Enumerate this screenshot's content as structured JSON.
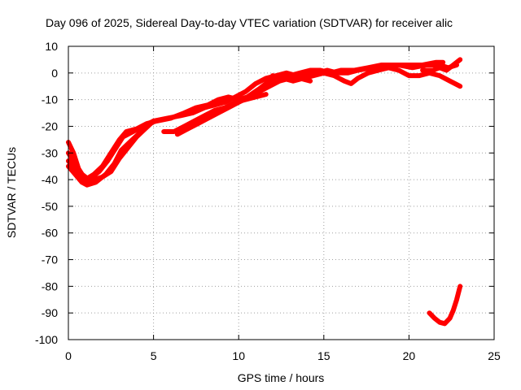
{
  "chart_data": {
    "type": "scatter",
    "title": "Day 096 of 2025, Sidereal Day-to-day VTEC variation (SDTVAR) for receiver alic",
    "xlabel": "GPS time / hours",
    "ylabel": "SDTVAR / TECUs",
    "xlim": [
      0,
      25
    ],
    "ylim": [
      -100,
      10
    ],
    "xticks": [
      0,
      5,
      10,
      15,
      20,
      25
    ],
    "yticks": [
      -100,
      -90,
      -80,
      -70,
      -60,
      -50,
      -40,
      -30,
      -20,
      -10,
      0,
      10
    ],
    "grid": true,
    "legend": "none",
    "series_color": "#ff0000",
    "series": [
      {
        "values": [
          [
            0.0,
            -26
          ],
          [
            0.3,
            -30
          ],
          [
            0.6,
            -36
          ],
          [
            1.0,
            -40
          ],
          [
            1.5,
            -38
          ],
          [
            2.0,
            -35
          ],
          [
            2.5,
            -30
          ],
          [
            3.0,
            -25
          ],
          [
            3.4,
            -22
          ],
          [
            4.0,
            -21
          ],
          [
            4.6,
            -19
          ],
          [
            5.2,
            -18
          ],
          [
            6.0,
            -17
          ],
          [
            6.8,
            -15
          ],
          [
            7.5,
            -13
          ],
          [
            8.2,
            -12
          ],
          [
            8.8,
            -10
          ],
          [
            9.4,
            -9
          ],
          [
            10.0,
            -10
          ],
          [
            10.5,
            -9
          ],
          [
            11.2,
            -6
          ],
          [
            11.8,
            -3
          ],
          [
            12.4,
            -1
          ],
          [
            13.0,
            -1
          ],
          [
            13.6,
            0
          ],
          [
            14.2,
            1
          ],
          [
            14.8,
            1
          ],
          [
            15.4,
            0
          ],
          [
            16.0,
            1
          ],
          [
            16.8,
            1
          ],
          [
            17.6,
            2
          ],
          [
            18.4,
            3
          ],
          [
            19.2,
            3
          ],
          [
            20.0,
            3
          ],
          [
            20.8,
            3
          ],
          [
            21.6,
            4
          ],
          [
            22.0,
            4
          ]
        ]
      },
      {
        "values": [
          [
            0.0,
            -30
          ],
          [
            0.4,
            -34
          ],
          [
            0.8,
            -38
          ],
          [
            1.2,
            -40
          ],
          [
            1.8,
            -37
          ],
          [
            2.3,
            -33
          ],
          [
            2.8,
            -28
          ],
          [
            3.2,
            -24
          ],
          [
            3.8,
            -22
          ],
          [
            4.4,
            -20
          ],
          [
            5.0,
            -18
          ],
          [
            5.8,
            -17
          ],
          [
            6.6,
            -16
          ],
          [
            7.3,
            -15
          ],
          [
            8.0,
            -13
          ],
          [
            8.6,
            -12
          ],
          [
            9.2,
            -11
          ],
          [
            9.8,
            -9
          ],
          [
            10.4,
            -7
          ],
          [
            11.0,
            -4
          ],
          [
            11.6,
            -2
          ],
          [
            12.2,
            -1
          ],
          [
            12.8,
            0
          ],
          [
            13.4,
            -1
          ],
          [
            14.0,
            0
          ],
          [
            14.6,
            0
          ],
          [
            15.2,
            1
          ],
          [
            15.8,
            0
          ],
          [
            16.4,
            0
          ],
          [
            17.0,
            1
          ],
          [
            17.8,
            2
          ],
          [
            18.6,
            2
          ],
          [
            19.4,
            3
          ],
          [
            20.2,
            2
          ],
          [
            21.0,
            3
          ],
          [
            21.8,
            3
          ],
          [
            22.3,
            2
          ],
          [
            22.8,
            3
          ]
        ]
      },
      {
        "values": [
          [
            0.0,
            -33
          ],
          [
            0.5,
            -37
          ],
          [
            1.0,
            -41
          ],
          [
            1.5,
            -40
          ],
          [
            2.0,
            -39
          ],
          [
            2.5,
            -37
          ],
          [
            3.0,
            -32
          ],
          [
            3.5,
            -28
          ],
          [
            4.0,
            -24
          ],
          [
            4.5,
            -21
          ],
          [
            5.0,
            -18
          ]
        ]
      },
      {
        "values": [
          [
            0.0,
            -35
          ],
          [
            0.4,
            -38
          ],
          [
            0.8,
            -41
          ],
          [
            1.1,
            -42
          ],
          [
            1.6,
            -41
          ],
          [
            2.2,
            -38
          ],
          [
            2.7,
            -34
          ],
          [
            3.1,
            -29
          ],
          [
            3.6,
            -26
          ],
          [
            4.1,
            -23
          ],
          [
            4.6,
            -20
          ]
        ]
      },
      {
        "values": [
          [
            5.6,
            -22
          ],
          [
            6.2,
            -22
          ],
          [
            6.8,
            -20
          ],
          [
            7.4,
            -18
          ],
          [
            8.0,
            -16
          ],
          [
            8.6,
            -14
          ],
          [
            9.2,
            -13
          ],
          [
            9.8,
            -11
          ],
          [
            10.4,
            -10
          ],
          [
            11.0,
            -9
          ],
          [
            11.6,
            -8
          ]
        ]
      },
      {
        "values": [
          [
            6.4,
            -23
          ],
          [
            7.0,
            -21
          ],
          [
            7.6,
            -19
          ],
          [
            8.2,
            -17
          ],
          [
            8.8,
            -15
          ],
          [
            9.4,
            -13
          ],
          [
            10.0,
            -11
          ],
          [
            10.6,
            -9
          ],
          [
            11.2,
            -7
          ],
          [
            11.8,
            -5
          ],
          [
            12.4,
            -3
          ],
          [
            13.0,
            -2
          ],
          [
            13.6,
            -2
          ],
          [
            14.2,
            -3
          ]
        ]
      },
      {
        "values": [
          [
            12.0,
            -1
          ],
          [
            12.6,
            -2
          ],
          [
            13.2,
            -3
          ],
          [
            13.8,
            -2
          ],
          [
            14.4,
            -1
          ],
          [
            15.0,
            0
          ],
          [
            15.6,
            -1
          ],
          [
            16.2,
            -3
          ],
          [
            16.6,
            -4
          ],
          [
            17.0,
            -2
          ],
          [
            17.6,
            0
          ],
          [
            18.2,
            1
          ],
          [
            18.8,
            2
          ],
          [
            19.4,
            1
          ],
          [
            20.0,
            -1
          ],
          [
            20.6,
            -1
          ],
          [
            21.2,
            0
          ],
          [
            21.8,
            -1
          ],
          [
            22.4,
            -3
          ],
          [
            23.0,
            -5
          ]
        ]
      },
      {
        "values": [
          [
            20.8,
            1
          ],
          [
            21.4,
            1
          ],
          [
            21.8,
            2
          ],
          [
            22.2,
            1
          ],
          [
            22.6,
            3
          ],
          [
            23.0,
            5
          ]
        ]
      },
      {
        "values": [
          [
            21.2,
            -90
          ],
          [
            21.5,
            -92
          ],
          [
            21.8,
            -93.5
          ],
          [
            22.1,
            -94
          ],
          [
            22.4,
            -92
          ],
          [
            22.6,
            -89
          ],
          [
            22.8,
            -85
          ],
          [
            23.0,
            -80
          ]
        ]
      }
    ]
  }
}
